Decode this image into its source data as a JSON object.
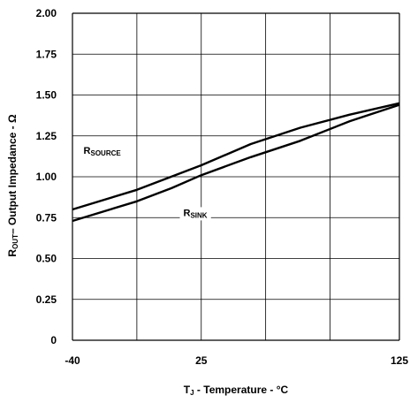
{
  "chart_data": {
    "type": "line",
    "title": "",
    "xlabel": {
      "main": "T",
      "sub": "J",
      "rest": " - Temperature - °C"
    },
    "ylabel": {
      "main": "R",
      "sub": "OUT",
      "rest": "– Output Impedance - Ω"
    },
    "xlim": [
      -40,
      125
    ],
    "ylim": [
      0,
      2
    ],
    "x_ticks": [
      -40,
      25,
      125
    ],
    "x_tick_labels": [
      "-40",
      "25",
      "125"
    ],
    "x_gridlines": [
      -40,
      -7.5,
      25,
      57.5,
      90,
      125
    ],
    "y_ticks": [
      0,
      0.25,
      0.5,
      0.75,
      1.0,
      1.25,
      1.5,
      1.75,
      2.0
    ],
    "y_tick_labels": [
      "0",
      "0.25",
      "0.50",
      "0.75",
      "1.00",
      "1.25",
      "1.50",
      "1.75",
      "2.00"
    ],
    "grid": true,
    "series": [
      {
        "name": "R_SOURCE",
        "x": [
          -40,
          -7.5,
          25,
          50,
          75,
          100,
          125
        ],
        "values": [
          0.8,
          0.92,
          1.07,
          1.2,
          1.3,
          1.38,
          1.45
        ],
        "color": "#000000"
      },
      {
        "name": "R_SINK",
        "x": [
          -40,
          -7.5,
          10,
          25,
          50,
          75,
          100,
          125
        ],
        "values": [
          0.73,
          0.85,
          0.93,
          1.01,
          1.12,
          1.22,
          1.34,
          1.44
        ],
        "color": "#000000"
      }
    ],
    "annotations": [
      {
        "main": "R",
        "sub": "SOURCE",
        "x": -25,
        "y": 1.14,
        "series": "R_SOURCE"
      },
      {
        "main": "R",
        "sub": "SINK",
        "x": 22,
        "y": 0.76,
        "series": "R_SINK"
      }
    ]
  }
}
